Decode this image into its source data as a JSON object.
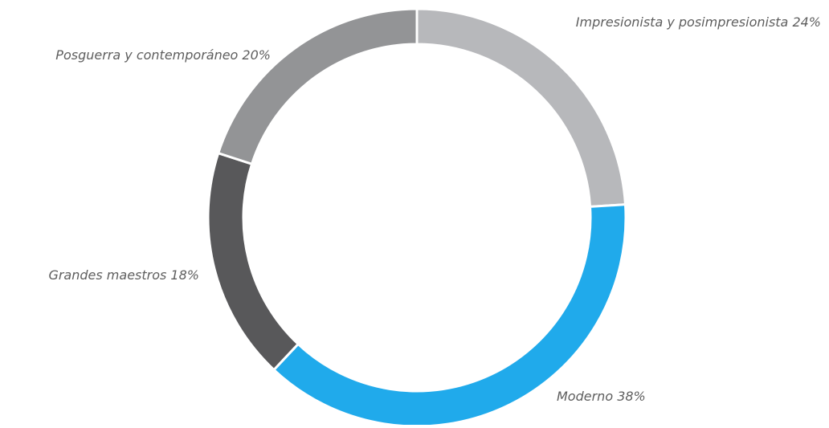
{
  "chart_data": {
    "type": "pie",
    "style": "donut",
    "slices": [
      {
        "name": "Impresionista y posimpresionista",
        "value": 24,
        "label": "Impresionista y posimpresionista 24%",
        "color": "#b7b8bb"
      },
      {
        "name": "Moderno",
        "value": 38,
        "label": "Moderno 38%",
        "color": "#20aaeb"
      },
      {
        "name": "Grandes maestros",
        "value": 18,
        "label": "Grandes maestros 18%",
        "color": "#58585a"
      },
      {
        "name": "Posguerra y contemporáneo",
        "value": 20,
        "label": "Posguerra y contemporáneo 20%",
        "color": "#939496"
      }
    ],
    "start_angle_deg": 0,
    "direction": "clockwise",
    "slice_separator_color": "#ffffff"
  }
}
